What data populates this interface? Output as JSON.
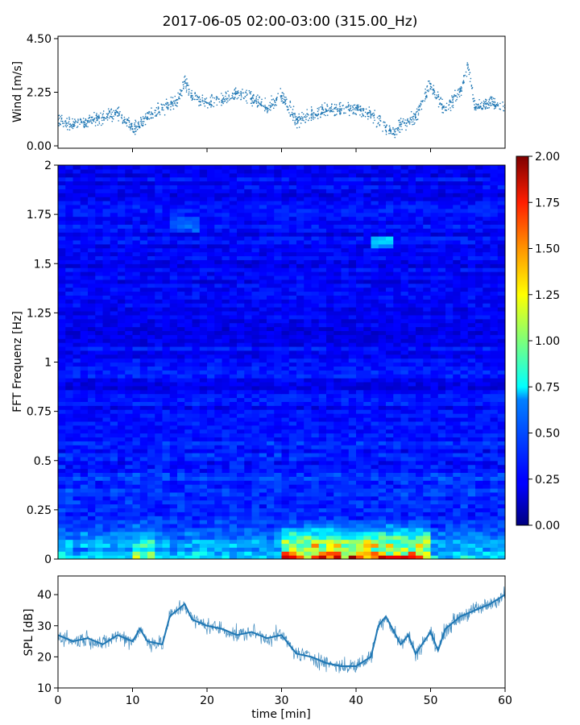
{
  "title": "2017-06-05 02:00-03:00 (315.00_Hz)",
  "chart_data": [
    {
      "type": "scatter",
      "name": "wind",
      "ylabel": "Wind [m/s]",
      "xlim": [
        0,
        60
      ],
      "ylim": [
        -0.1,
        4.6
      ],
      "yticks": [
        "0.00",
        "2.25",
        "4.50"
      ],
      "ytick_values": [
        0,
        2.25,
        4.5
      ],
      "series": [
        {
          "name": "Wind",
          "color": "#1f77b4",
          "x": [
            0,
            2,
            4,
            6,
            8,
            10,
            12,
            14,
            16,
            17,
            18,
            20,
            22,
            24,
            26,
            28,
            30,
            32,
            34,
            36,
            38,
            40,
            42,
            44,
            45,
            46,
            48,
            50,
            52,
            54,
            55,
            56,
            58,
            60
          ],
          "y": [
            1.1,
            0.9,
            1.0,
            1.2,
            1.4,
            0.7,
            1.2,
            1.6,
            1.8,
            2.7,
            2.1,
            1.8,
            1.9,
            2.2,
            2.0,
            1.6,
            2.1,
            1.1,
            1.3,
            1.5,
            1.5,
            1.6,
            1.3,
            0.8,
            0.5,
            0.9,
            1.2,
            2.6,
            1.5,
            2.3,
            3.4,
            1.6,
            1.8,
            1.6
          ]
        }
      ]
    },
    {
      "type": "heatmap",
      "name": "spectrogram",
      "ylabel": "FFT Frequenz [Hz]",
      "xlim": [
        0,
        60
      ],
      "ylim": [
        0,
        2
      ],
      "yticks": [
        "0",
        "0.25",
        "0.5",
        "0.75",
        "1",
        "1.25",
        "1.5",
        "1.75",
        "2"
      ],
      "ytick_values": [
        0,
        0.25,
        0.5,
        0.75,
        1,
        1.25,
        1.5,
        1.75,
        2
      ],
      "colormap": "jet",
      "colorbar": {
        "range": [
          0,
          2
        ],
        "ticks": [
          "0.00",
          "0.25",
          "0.50",
          "0.75",
          "1.00",
          "1.25",
          "1.50",
          "1.75",
          "2.00"
        ],
        "tick_values": [
          0,
          0.25,
          0.5,
          0.75,
          1,
          1.25,
          1.5,
          1.75,
          2
        ]
      }
    },
    {
      "type": "line",
      "name": "spl",
      "xlabel": "time [min]",
      "ylabel": "SPL [dB]",
      "xlim": [
        0,
        60
      ],
      "ylim": [
        10,
        46
      ],
      "xticks": [
        "0",
        "10",
        "20",
        "30",
        "40",
        "50",
        "60"
      ],
      "xtick_values": [
        0,
        10,
        20,
        30,
        40,
        50,
        60
      ],
      "yticks": [
        "10",
        "20",
        "30",
        "40"
      ],
      "ytick_values": [
        10,
        20,
        30,
        40
      ],
      "series": [
        {
          "name": "SPL",
          "color": "#1f77b4",
          "x": [
            0,
            2,
            4,
            6,
            8,
            10,
            11,
            12,
            14,
            15,
            16,
            17,
            18,
            20,
            22,
            24,
            26,
            28,
            30,
            31,
            32,
            34,
            36,
            38,
            40,
            42,
            43,
            44,
            46,
            47,
            48,
            50,
            51,
            52,
            54,
            56,
            58,
            60
          ],
          "y": [
            27,
            25,
            26,
            24,
            27,
            25,
            29,
            25,
            24,
            33,
            35,
            37,
            32,
            30,
            29,
            27,
            28,
            26,
            27,
            24,
            21,
            20,
            18,
            17,
            17,
            20,
            30,
            33,
            24,
            27,
            21,
            28,
            22,
            29,
            33,
            35,
            37,
            40
          ]
        }
      ]
    }
  ]
}
